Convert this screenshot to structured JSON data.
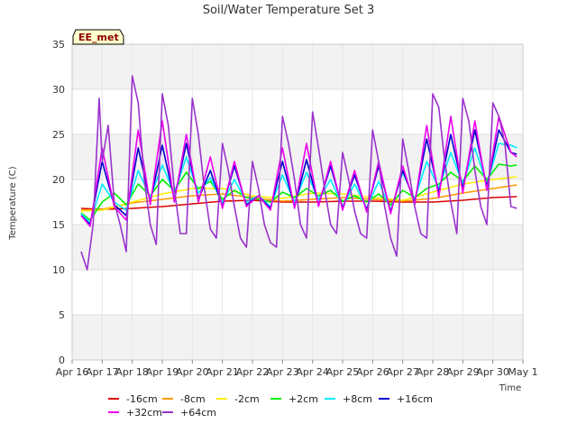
{
  "chart_data": {
    "type": "line",
    "title": "Soil/Water Temperature Set 3",
    "xlabel": "Time",
    "ylabel": "Temperature (C)",
    "site_label": "EE_met",
    "x_tick_labels": [
      "Apr 16",
      "Apr 17",
      "Apr 18",
      "Apr 19",
      "Apr 20",
      "Apr 21",
      "Apr 22",
      "Apr 23",
      "Apr 24",
      "Apr 25",
      "Apr 26",
      "Apr 27",
      "Apr 28",
      "Apr 29",
      "Apr 30",
      "May 1"
    ],
    "x_tick_values": [
      0,
      1,
      2,
      3,
      4,
      5,
      6,
      7,
      8,
      9,
      10,
      11,
      12,
      13,
      14,
      15
    ],
    "xlim": [
      0,
      15
    ],
    "ylim": [
      0,
      35
    ],
    "y_ticks": [
      0,
      5,
      10,
      15,
      20,
      25,
      30,
      35
    ],
    "grid": true,
    "legend_position": "bottom",
    "x_units": "days since Apr 16",
    "series": [
      {
        "name": "-16cm",
        "color": "#dd0000",
        "x": [
          0.3,
          1,
          2,
          3,
          4,
          5,
          6,
          7,
          8,
          9,
          10,
          11,
          12,
          13,
          14,
          14.8
        ],
        "y": [
          16.8,
          16.7,
          16.8,
          17.0,
          17.3,
          17.6,
          17.7,
          17.5,
          17.5,
          17.6,
          17.6,
          17.5,
          17.5,
          17.7,
          18.0,
          18.1
        ]
      },
      {
        "name": "-8cm",
        "color": "#ff9900",
        "x": [
          0.3,
          1,
          2,
          3,
          4,
          5,
          6,
          7,
          8,
          9,
          10,
          11,
          12,
          13,
          14,
          14.8
        ],
        "y": [
          16.6,
          16.7,
          17.4,
          17.8,
          18.2,
          18.4,
          18.0,
          17.6,
          17.8,
          18.0,
          17.8,
          17.6,
          17.9,
          18.5,
          19.0,
          19.4
        ]
      },
      {
        "name": "-2cm",
        "color": "#ffee00",
        "x": [
          0.3,
          1,
          2,
          3,
          4,
          5,
          6,
          7,
          8,
          9,
          10,
          11,
          12,
          13,
          14,
          14.8
        ],
        "y": [
          16.5,
          16.6,
          17.5,
          18.4,
          19.0,
          19.0,
          18.2,
          17.9,
          18.5,
          18.4,
          18.0,
          17.7,
          18.6,
          19.5,
          20.0,
          20.3
        ]
      },
      {
        "name": "+2cm",
        "color": "#00ee00",
        "x": [
          0.3,
          0.6,
          1,
          1.4,
          1.8,
          2.2,
          2.6,
          3.0,
          3.4,
          3.8,
          4.2,
          4.6,
          5.0,
          5.4,
          5.8,
          6.2,
          6.6,
          7.0,
          7.4,
          7.8,
          8.2,
          8.6,
          9.0,
          9.4,
          9.8,
          10.2,
          10.6,
          11.0,
          11.4,
          11.8,
          12.2,
          12.6,
          13.0,
          13.4,
          13.8,
          14.2,
          14.6,
          14.8
        ],
        "y": [
          16.3,
          15.5,
          17.5,
          18.5,
          17.2,
          19.5,
          18.2,
          20.0,
          18.8,
          20.8,
          19.0,
          19.8,
          17.8,
          18.8,
          18.0,
          17.8,
          17.5,
          18.6,
          18.0,
          19.0,
          18.2,
          18.8,
          17.6,
          18.2,
          17.5,
          18.4,
          17.2,
          18.8,
          18.0,
          19.0,
          19.5,
          20.8,
          19.8,
          21.5,
          20.0,
          21.7,
          21.5,
          21.6
        ]
      },
      {
        "name": "+8cm",
        "color": "#00eeff",
        "x": [
          0.3,
          0.6,
          1,
          1.4,
          1.8,
          2.2,
          2.6,
          3.0,
          3.4,
          3.8,
          4.2,
          4.6,
          5.0,
          5.4,
          5.8,
          6.2,
          6.6,
          7.0,
          7.4,
          7.8,
          8.2,
          8.6,
          9.0,
          9.4,
          9.8,
          10.2,
          10.6,
          11.0,
          11.4,
          11.8,
          12.2,
          12.6,
          13.0,
          13.4,
          13.8,
          14.2,
          14.6,
          14.8
        ],
        "y": [
          16.2,
          15.2,
          19.5,
          17.5,
          16.6,
          21.0,
          18.0,
          21.6,
          18.5,
          22.5,
          18.5,
          20.2,
          17.4,
          20.0,
          17.5,
          18.2,
          17.0,
          20.5,
          17.5,
          20.8,
          17.8,
          20.0,
          17.0,
          19.5,
          16.8,
          19.8,
          16.6,
          20.8,
          17.8,
          22.0,
          19.0,
          23.0,
          19.5,
          23.5,
          19.5,
          24.0,
          23.8,
          23.5
        ]
      },
      {
        "name": "+16cm",
        "color": "#0000cc",
        "x": [
          0.3,
          0.6,
          1,
          1.4,
          1.8,
          2.2,
          2.6,
          3.0,
          3.4,
          3.8,
          4.2,
          4.6,
          5.0,
          5.4,
          5.8,
          6.2,
          6.6,
          7.0,
          7.4,
          7.8,
          8.2,
          8.6,
          9.0,
          9.4,
          9.8,
          10.2,
          10.6,
          11.0,
          11.4,
          11.8,
          12.2,
          12.6,
          13.0,
          13.4,
          13.8,
          14.2,
          14.6,
          14.8
        ],
        "y": [
          16.0,
          15.0,
          22.0,
          17.2,
          16.0,
          23.5,
          17.5,
          23.8,
          17.8,
          24.0,
          17.8,
          21.0,
          17.0,
          21.5,
          17.2,
          18.2,
          16.8,
          22.0,
          17.0,
          22.2,
          17.2,
          21.5,
          16.8,
          20.5,
          16.6,
          21.5,
          16.4,
          21.0,
          17.5,
          24.5,
          18.5,
          25.0,
          19.0,
          25.5,
          19.2,
          25.5,
          23.0,
          22.8
        ]
      },
      {
        "name": "+32cm",
        "color": "#ee00ee",
        "x": [
          0.3,
          0.6,
          1,
          1.4,
          1.8,
          2.2,
          2.6,
          3.0,
          3.4,
          3.8,
          4.2,
          4.6,
          5.0,
          5.4,
          5.8,
          6.2,
          6.6,
          7.0,
          7.4,
          7.8,
          8.2,
          8.6,
          9.0,
          9.4,
          9.8,
          10.2,
          10.6,
          11.0,
          11.4,
          11.8,
          12.2,
          12.6,
          13.0,
          13.4,
          13.8,
          14.2,
          14.6,
          14.8
        ],
        "y": [
          16.0,
          14.8,
          23.5,
          17.0,
          15.5,
          25.5,
          17.2,
          26.5,
          17.5,
          25.0,
          17.5,
          22.5,
          16.8,
          22.0,
          17.0,
          18.2,
          16.6,
          23.5,
          16.8,
          24.0,
          17.0,
          22.0,
          16.6,
          21.0,
          16.4,
          22.0,
          16.2,
          21.5,
          17.2,
          26.0,
          18.0,
          27.0,
          18.5,
          26.5,
          18.8,
          27.0,
          23.0,
          22.5
        ]
      },
      {
        "name": "+64cm",
        "color": "#9933cc",
        "x": [
          0.3,
          0.5,
          0.7,
          0.9,
          1.0,
          1.2,
          1.4,
          1.6,
          1.8,
          2.0,
          2.2,
          2.4,
          2.6,
          2.8,
          3.0,
          3.2,
          3.4,
          3.6,
          3.8,
          4.0,
          4.2,
          4.4,
          4.6,
          4.8,
          5.0,
          5.2,
          5.4,
          5.6,
          5.8,
          6.0,
          6.2,
          6.4,
          6.6,
          6.8,
          7.0,
          7.2,
          7.4,
          7.6,
          7.8,
          8.0,
          8.2,
          8.4,
          8.6,
          8.8,
          9.0,
          9.2,
          9.4,
          9.6,
          9.8,
          10.0,
          10.2,
          10.4,
          10.6,
          10.8,
          11.0,
          11.2,
          11.4,
          11.6,
          11.8,
          12.0,
          12.2,
          12.4,
          12.6,
          12.8,
          13.0,
          13.2,
          13.4,
          13.6,
          13.8,
          14.0,
          14.2,
          14.4,
          14.6,
          14.8
        ],
        "y": [
          12.0,
          10.0,
          15.0,
          29.0,
          22.0,
          26.0,
          17.5,
          15.0,
          12.0,
          31.5,
          28.5,
          20.0,
          15.0,
          12.8,
          29.5,
          26.0,
          19.0,
          14.0,
          14.0,
          29.0,
          25.0,
          19.0,
          14.5,
          13.5,
          24.0,
          21.0,
          17.0,
          13.5,
          12.5,
          22.0,
          19.0,
          15.0,
          13.0,
          12.5,
          27.0,
          24.0,
          20.0,
          15.0,
          13.5,
          27.5,
          23.5,
          19.0,
          15.0,
          14.0,
          23.0,
          20.0,
          16.5,
          14.0,
          13.5,
          25.5,
          22.0,
          17.0,
          13.5,
          11.5,
          24.5,
          21.0,
          17.0,
          14.0,
          13.5,
          29.5,
          28.0,
          22.0,
          17.5,
          14.0,
          29.0,
          26.5,
          21.0,
          17.0,
          15.0,
          28.5,
          27.0,
          24.0,
          17.0,
          16.8
        ]
      }
    ]
  }
}
